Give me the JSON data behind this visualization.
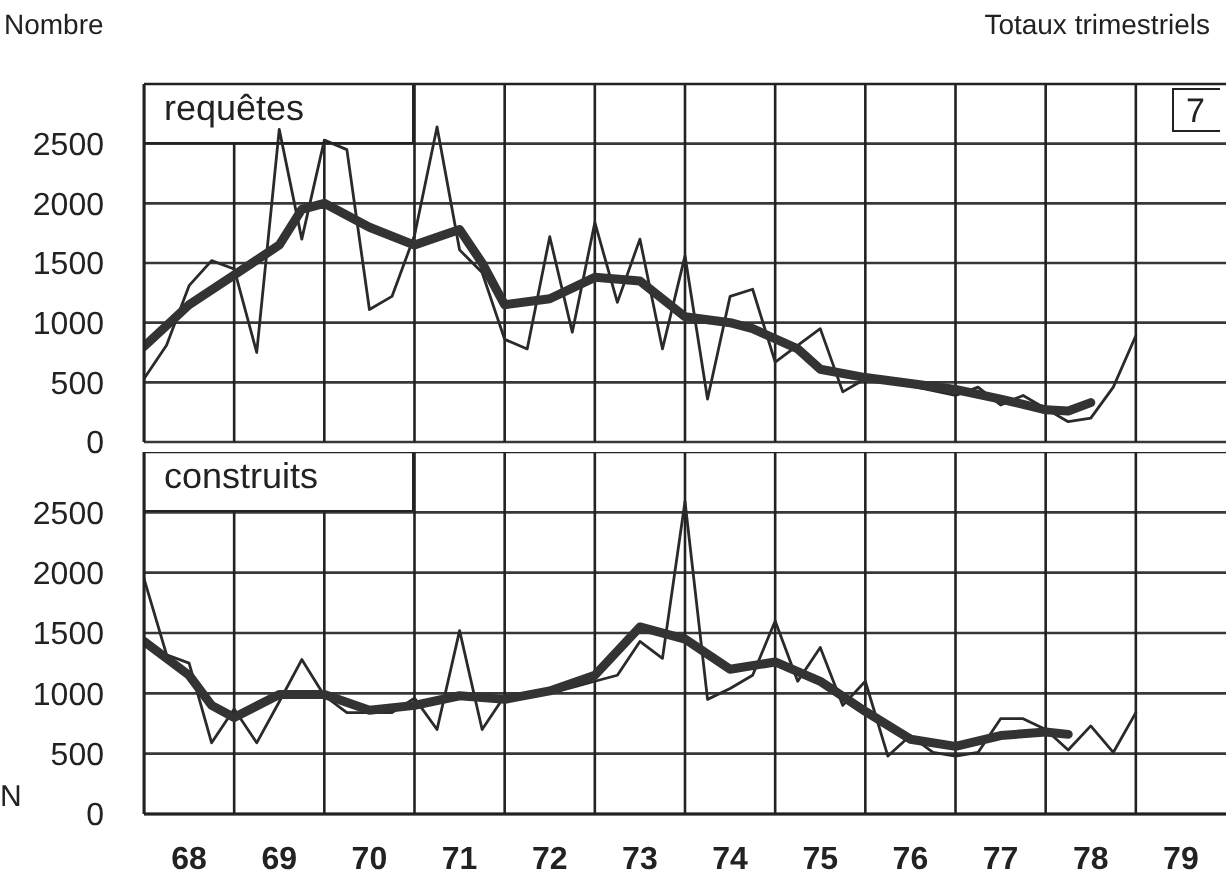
{
  "chart_data": [
    {
      "type": "line",
      "ylabel": "Nombre",
      "title": "Totaux trimestriels",
      "annotations": [
        "requêtes",
        "7"
      ],
      "xlim": [
        67.5,
        79.5
      ],
      "xticks": [
        {
          "value": 67.5,
          "label": null
        },
        68,
        {
          "value": 68.5,
          "label": null
        },
        69,
        {
          "value": 69.5,
          "label": null
        },
        70,
        {
          "value": 70.5,
          "label": null
        },
        71,
        {
          "value": 71.5,
          "label": null
        },
        72,
        {
          "value": 72.5,
          "label": null
        },
        73,
        {
          "value": 73.5,
          "label": null
        },
        74,
        {
          "value": 74.5,
          "label": null
        },
        75,
        {
          "value": 75.5,
          "label": null
        },
        76,
        {
          "value": 76.5,
          "label": null
        },
        77,
        {
          "value": 77.5,
          "label": null
        },
        78,
        {
          "value": 78.5,
          "label": null
        },
        79
      ],
      "ylim": [
        0,
        3000
      ],
      "yticks": [
        0,
        500,
        1000,
        1500,
        2000,
        2500
      ],
      "tick_labels": "y",
      "grid": true,
      "marker": "none",
      "line_style": "solid",
      "series": [
        {
          "color": "#2a2a2a",
          "x": [
            67.5,
            67.75,
            68,
            68.25,
            68.5,
            68.75,
            69,
            69.25,
            69.5,
            69.75,
            70,
            70.25,
            70.5,
            70.75,
            71,
            71.25,
            71.5,
            71.75,
            72,
            72.25,
            72.5,
            72.75,
            73,
            73.25,
            73.5,
            73.75,
            74,
            74.25,
            74.5,
            74.75,
            75,
            75.25,
            75.5,
            75.75,
            76,
            76.25,
            76.5,
            76.75,
            77,
            77.25,
            77.5,
            77.75,
            78,
            78.25,
            78.5
          ],
          "values": [
            530,
            810,
            1310,
            1520,
            1450,
            750,
            2620,
            1700,
            2530,
            2450,
            1110,
            1220,
            1730,
            2640,
            1610,
            1420,
            860,
            780,
            1720,
            920,
            1840,
            1170,
            1700,
            780,
            1560,
            360,
            1220,
            1280,
            670,
            810,
            950,
            420,
            530,
            500,
            470,
            430,
            390,
            460,
            310,
            390,
            280,
            170,
            200,
            460,
            890
          ]
        },
        {
          "color": "#333333",
          "x": [
            67.5,
            68,
            68.5,
            69,
            69.25,
            69.5,
            70,
            70.5,
            71,
            71.25,
            71.5,
            72,
            72.5,
            73,
            73.5,
            74,
            74.25,
            74.75,
            75,
            75.5,
            76.5,
            77,
            77.5,
            77.75,
            78
          ],
          "values": [
            800,
            1150,
            1400,
            1650,
            1950,
            2000,
            1800,
            1650,
            1780,
            1500,
            1150,
            1200,
            1380,
            1350,
            1050,
            1000,
            950,
            780,
            610,
            540,
            440,
            360,
            270,
            260,
            330
          ]
        }
      ]
    },
    {
      "type": "line",
      "annotations": [
        "construits",
        "N"
      ],
      "xlim": [
        67.5,
        79.5
      ],
      "xticks": [
        {
          "value": 67.5,
          "label": null
        },
        68,
        {
          "value": 68.5,
          "label": null
        },
        69,
        {
          "value": 69.5,
          "label": null
        },
        70,
        {
          "value": 70.5,
          "label": null
        },
        71,
        {
          "value": 71.5,
          "label": null
        },
        72,
        {
          "value": 72.5,
          "label": null
        },
        73,
        {
          "value": 73.5,
          "label": null
        },
        74,
        {
          "value": 74.5,
          "label": null
        },
        75,
        {
          "value": 75.5,
          "label": null
        },
        76,
        {
          "value": 76.5,
          "label": null
        },
        77,
        {
          "value": 77.5,
          "label": null
        },
        78,
        {
          "value": 78.5,
          "label": null
        },
        79
      ],
      "ylim": [
        0,
        3000
      ],
      "yticks": [
        0,
        500,
        1000,
        1500,
        2000,
        2500
      ],
      "grid": true,
      "marker": "none",
      "line_style": "solid",
      "series": [
        {
          "color": "#2a2a2a",
          "x": [
            67.5,
            67.75,
            68,
            68.25,
            68.5,
            68.75,
            69,
            69.25,
            69.5,
            69.75,
            70,
            70.25,
            70.5,
            70.75,
            71,
            71.25,
            71.5,
            71.75,
            72,
            72.25,
            72.5,
            72.75,
            73,
            73.25,
            73.5,
            73.75,
            74,
            74.25,
            74.5,
            74.75,
            75,
            75.25,
            75.5,
            75.75,
            76,
            76.25,
            76.5,
            76.75,
            77,
            77.25,
            77.5,
            77.75,
            78,
            78.25,
            78.5
          ],
          "values": [
            1950,
            1320,
            1250,
            590,
            870,
            590,
            930,
            1280,
            980,
            840,
            840,
            840,
            960,
            700,
            1520,
            700,
            980,
            980,
            1000,
            1050,
            1100,
            1150,
            1430,
            1290,
            2590,
            950,
            1040,
            1150,
            1600,
            1100,
            1380,
            900,
            1100,
            480,
            650,
            510,
            480,
            510,
            790,
            790,
            700,
            530,
            730,
            510,
            840
          ]
        },
        {
          "color": "#333333",
          "x": [
            67.5,
            68,
            68.25,
            68.5,
            69,
            69.5,
            70,
            70.5,
            71,
            71.5,
            72,
            72.5,
            73,
            73.5,
            74,
            74.5,
            75,
            75.5,
            76,
            76.5,
            77,
            77.5,
            77.75
          ],
          "values": [
            1430,
            1150,
            900,
            800,
            990,
            990,
            860,
            900,
            980,
            950,
            1020,
            1150,
            1550,
            1450,
            1200,
            1260,
            1100,
            850,
            620,
            560,
            650,
            680,
            660
          ]
        }
      ]
    }
  ]
}
